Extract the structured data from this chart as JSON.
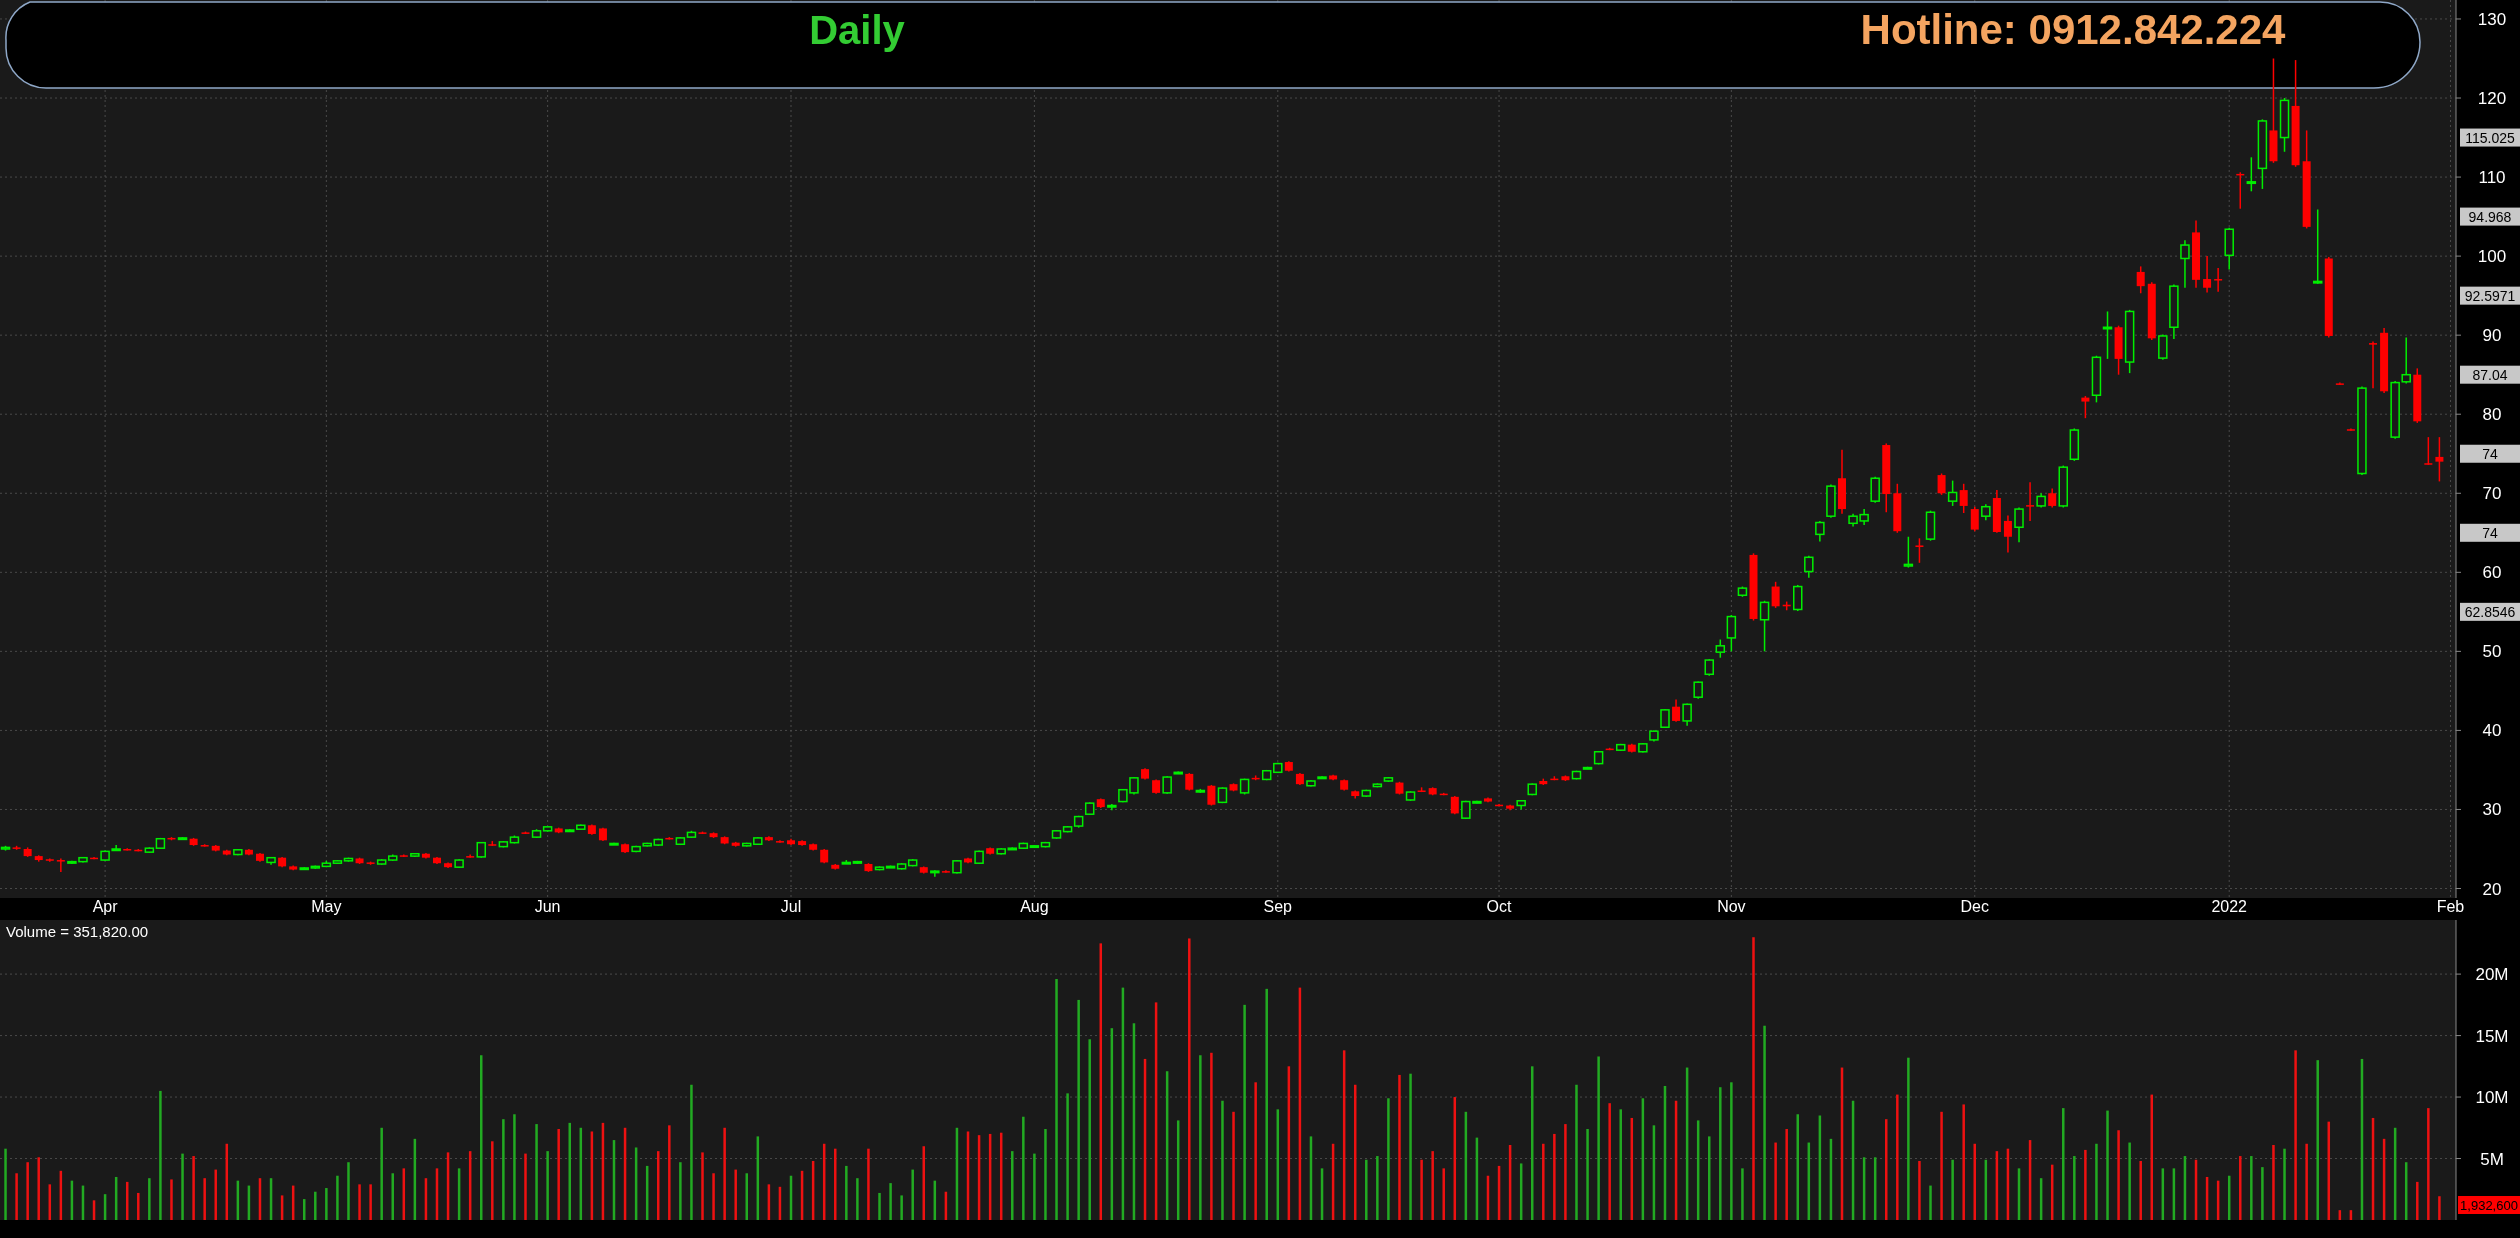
{
  "chart_data": [
    {
      "type": "candlestick",
      "title": "Daily",
      "ylim": [
        18.8,
        132.4
      ],
      "yticks": [
        20,
        30,
        40,
        50,
        60,
        70,
        80,
        90,
        100,
        110,
        120,
        130
      ],
      "grid": true,
      "annotations": [
        "Hotline: 0912.842.224",
        "115.025",
        "94.968",
        "92.5971",
        "87.04",
        "74",
        "74",
        "62.8546"
      ],
      "categories": [
        null,
        null,
        null,
        null,
        null,
        null,
        null,
        null,
        null,
        "Apr",
        null,
        null,
        null,
        null,
        null,
        null,
        null,
        null,
        null,
        null,
        null,
        null,
        null,
        null,
        null,
        null,
        null,
        null,
        null,
        "May",
        null,
        null,
        null,
        null,
        null,
        null,
        null,
        null,
        null,
        null,
        null,
        null,
        null,
        null,
        null,
        null,
        null,
        null,
        null,
        "Jun",
        null,
        null,
        null,
        null,
        null,
        null,
        null,
        null,
        null,
        null,
        null,
        null,
        null,
        null,
        null,
        null,
        null,
        null,
        null,
        null,
        null,
        "Jul",
        null,
        null,
        null,
        null,
        null,
        null,
        null,
        null,
        null,
        null,
        null,
        null,
        null,
        null,
        null,
        null,
        null,
        null,
        null,
        null,
        null,
        "Aug",
        null,
        null,
        null,
        null,
        null,
        null,
        null,
        null,
        null,
        null,
        null,
        null,
        null,
        null,
        null,
        null,
        null,
        null,
        null,
        null,
        null,
        "Sep",
        null,
        null,
        null,
        null,
        null,
        null,
        null,
        null,
        null,
        null,
        null,
        null,
        null,
        null,
        null,
        null,
        null,
        null,
        null,
        "Oct",
        null,
        null,
        null,
        null,
        null,
        null,
        null,
        null,
        null,
        null,
        null,
        null,
        null,
        null,
        null,
        null,
        null,
        null,
        null,
        null,
        "Nov",
        null,
        null,
        null,
        null,
        null,
        null,
        null,
        null,
        null,
        null,
        null,
        null,
        null,
        null,
        null,
        null,
        null,
        null,
        null,
        null,
        null,
        "Dec",
        null,
        null,
        null,
        null,
        null,
        null,
        null,
        null,
        null,
        null,
        null,
        null,
        null,
        null,
        null,
        null,
        null,
        null,
        null,
        null,
        null,
        null,
        "2022",
        null,
        null,
        null,
        null,
        null,
        null,
        null,
        null,
        null,
        null,
        null,
        null,
        null,
        null,
        null,
        null,
        null,
        null,
        null,
        "Feb"
      ],
      "ohlc": [
        [
          25.0,
          25.4,
          24.8,
          25.2
        ],
        [
          25.2,
          25.4,
          24.9,
          25.1
        ],
        [
          25.0,
          25.2,
          24.0,
          24.1
        ],
        [
          24.1,
          24.2,
          23.4,
          23.6
        ],
        [
          23.7,
          23.8,
          23.4,
          23.6
        ],
        [
          23.6,
          23.8,
          22.1,
          23.5
        ],
        [
          23.3,
          23.5,
          23.1,
          23.4
        ],
        [
          23.4,
          24.0,
          23.3,
          23.9
        ],
        [
          23.9,
          24.0,
          23.7,
          23.8
        ],
        [
          23.6,
          24.8,
          23.5,
          24.7
        ],
        [
          24.9,
          25.5,
          24.8,
          25.0
        ],
        [
          25.0,
          25.1,
          24.8,
          24.9
        ],
        [
          24.9,
          25.0,
          24.7,
          24.8
        ],
        [
          24.6,
          25.2,
          24.5,
          25.1
        ],
        [
          25.1,
          26.4,
          25.0,
          26.3
        ],
        [
          26.4,
          26.5,
          26.1,
          26.3
        ],
        [
          26.3,
          26.5,
          26.2,
          26.4
        ],
        [
          26.3,
          26.4,
          25.4,
          25.5
        ],
        [
          25.5,
          25.6,
          25.3,
          25.4
        ],
        [
          25.4,
          25.5,
          24.7,
          24.8
        ],
        [
          24.8,
          24.9,
          24.2,
          24.3
        ],
        [
          24.3,
          25.0,
          24.2,
          24.9
        ],
        [
          24.9,
          25.0,
          24.2,
          24.3
        ],
        [
          24.4,
          24.5,
          23.4,
          23.5
        ],
        [
          23.3,
          24.0,
          23.0,
          23.9
        ],
        [
          23.9,
          24.0,
          22.7,
          22.8
        ],
        [
          22.8,
          22.9,
          22.3,
          22.4
        ],
        [
          22.5,
          22.7,
          22.4,
          22.6
        ],
        [
          22.6,
          22.9,
          22.5,
          22.8
        ],
        [
          22.8,
          23.5,
          22.7,
          23.2
        ],
        [
          23.2,
          23.6,
          23.1,
          23.5
        ],
        [
          23.5,
          23.9,
          23.4,
          23.8
        ],
        [
          23.8,
          23.9,
          23.1,
          23.2
        ],
        [
          23.3,
          23.4,
          23.0,
          23.2
        ],
        [
          23.1,
          23.7,
          23.0,
          23.6
        ],
        [
          23.6,
          24.3,
          23.5,
          24.1
        ],
        [
          24.2,
          24.3,
          24.0,
          24.1
        ],
        [
          24.1,
          24.5,
          24.0,
          24.4
        ],
        [
          24.4,
          24.5,
          23.8,
          23.9
        ],
        [
          23.9,
          24.0,
          23.1,
          23.2
        ],
        [
          23.2,
          23.3,
          22.6,
          22.7
        ],
        [
          22.7,
          23.7,
          22.6,
          23.6
        ],
        [
          24.1,
          24.3,
          23.9,
          24.0
        ],
        [
          24.0,
          25.9,
          23.9,
          25.8
        ],
        [
          25.6,
          26.0,
          25.4,
          25.5
        ],
        [
          25.3,
          26.0,
          25.2,
          25.9
        ],
        [
          25.8,
          26.7,
          25.7,
          26.5
        ],
        [
          27.1,
          27.2,
          26.9,
          27.0
        ],
        [
          26.5,
          27.5,
          26.4,
          27.3
        ],
        [
          27.3,
          27.9,
          27.2,
          27.8
        ],
        [
          27.6,
          27.7,
          27.0,
          27.1
        ],
        [
          27.3,
          27.5,
          27.2,
          27.4
        ],
        [
          27.5,
          28.1,
          27.4,
          28.0
        ],
        [
          28.0,
          28.1,
          26.8,
          26.9
        ],
        [
          27.6,
          27.7,
          26.0,
          26.1
        ],
        [
          25.6,
          25.8,
          25.5,
          25.7
        ],
        [
          25.6,
          25.7,
          24.5,
          24.6
        ],
        [
          24.7,
          25.4,
          24.6,
          25.3
        ],
        [
          25.4,
          25.8,
          25.3,
          25.7
        ],
        [
          25.5,
          26.3,
          25.4,
          26.2
        ],
        [
          26.4,
          26.5,
          26.2,
          26.3
        ],
        [
          25.6,
          26.5,
          25.5,
          26.4
        ],
        [
          26.5,
          27.3,
          26.4,
          27.1
        ],
        [
          27.1,
          27.2,
          26.9,
          27.0
        ],
        [
          27.0,
          27.1,
          26.4,
          26.5
        ],
        [
          26.5,
          26.6,
          25.6,
          25.7
        ],
        [
          25.8,
          25.9,
          25.3,
          25.4
        ],
        [
          25.4,
          25.8,
          25.3,
          25.7
        ],
        [
          25.6,
          26.5,
          25.5,
          26.4
        ],
        [
          26.5,
          26.6,
          26.0,
          26.1
        ],
        [
          26.0,
          26.1,
          25.8,
          25.9
        ],
        [
          26.1,
          26.3,
          25.5,
          25.6
        ],
        [
          26.0,
          26.1,
          25.4,
          25.5
        ],
        [
          25.6,
          25.7,
          24.8,
          24.9
        ],
        [
          24.9,
          25.0,
          23.2,
          23.3
        ],
        [
          23.0,
          23.1,
          22.4,
          22.5
        ],
        [
          23.2,
          23.6,
          23.1,
          23.3
        ],
        [
          23.3,
          23.5,
          23.1,
          23.4
        ],
        [
          23.1,
          23.2,
          22.1,
          22.2
        ],
        [
          22.4,
          22.8,
          22.3,
          22.7
        ],
        [
          22.7,
          22.9,
          22.6,
          22.8
        ],
        [
          22.5,
          23.2,
          22.4,
          23.1
        ],
        [
          22.9,
          23.7,
          22.8,
          23.6
        ],
        [
          22.7,
          22.8,
          21.9,
          22.0
        ],
        [
          22.1,
          22.3,
          21.5,
          22.2
        ],
        [
          22.2,
          22.3,
          22.0,
          22.1
        ],
        [
          22.0,
          23.6,
          21.9,
          23.5
        ],
        [
          23.8,
          23.9,
          23.2,
          23.3
        ],
        [
          23.2,
          24.8,
          23.1,
          24.7
        ],
        [
          25.1,
          25.2,
          24.3,
          24.4
        ],
        [
          24.4,
          25.1,
          24.3,
          25.0
        ],
        [
          25.0,
          25.2,
          24.9,
          25.1
        ],
        [
          25.1,
          25.8,
          25.0,
          25.7
        ],
        [
          25.3,
          25.5,
          25.2,
          25.4
        ],
        [
          25.3,
          25.9,
          25.2,
          25.8
        ],
        [
          26.4,
          27.4,
          26.3,
          27.3
        ],
        [
          27.2,
          27.9,
          27.1,
          27.8
        ],
        [
          27.9,
          29.2,
          27.7,
          29.1
        ],
        [
          29.4,
          30.9,
          29.3,
          30.8
        ],
        [
          31.3,
          31.4,
          30.2,
          30.3
        ],
        [
          30.4,
          30.7,
          29.9,
          30.5
        ],
        [
          31.0,
          32.6,
          30.9,
          32.5
        ],
        [
          32.1,
          34.1,
          31.9,
          34.0
        ],
        [
          35.1,
          35.2,
          33.8,
          33.9
        ],
        [
          33.7,
          33.8,
          32.0,
          32.1
        ],
        [
          32.1,
          34.2,
          32.0,
          34.1
        ],
        [
          34.6,
          34.8,
          34.5,
          34.7
        ],
        [
          34.5,
          34.6,
          32.4,
          32.5
        ],
        [
          32.3,
          32.6,
          32.1,
          32.4
        ],
        [
          33.0,
          33.1,
          30.5,
          30.6
        ],
        [
          30.9,
          32.8,
          30.8,
          32.7
        ],
        [
          33.2,
          33.3,
          32.3,
          32.4
        ],
        [
          32.1,
          33.9,
          31.9,
          33.8
        ],
        [
          34.0,
          34.3,
          33.7,
          33.9
        ],
        [
          33.8,
          35.0,
          33.7,
          34.9
        ],
        [
          34.7,
          35.9,
          34.6,
          35.8
        ],
        [
          36.0,
          36.1,
          34.8,
          34.9
        ],
        [
          34.5,
          34.6,
          33.1,
          33.2
        ],
        [
          33.0,
          33.7,
          32.9,
          33.6
        ],
        [
          34.0,
          34.2,
          33.9,
          34.1
        ],
        [
          34.3,
          34.4,
          33.7,
          33.8
        ],
        [
          33.7,
          33.8,
          32.4,
          32.5
        ],
        [
          32.3,
          32.4,
          31.4,
          31.7
        ],
        [
          31.7,
          32.5,
          31.6,
          32.4
        ],
        [
          32.9,
          33.3,
          32.8,
          33.2
        ],
        [
          33.6,
          34.1,
          33.5,
          34.0
        ],
        [
          33.4,
          33.5,
          31.9,
          32.0
        ],
        [
          31.2,
          32.3,
          31.1,
          32.2
        ],
        [
          32.4,
          32.8,
          32.2,
          32.3
        ],
        [
          32.7,
          32.8,
          31.8,
          31.9
        ],
        [
          32.0,
          32.1,
          31.8,
          31.9
        ],
        [
          31.6,
          31.7,
          29.4,
          29.5
        ],
        [
          28.9,
          31.1,
          28.8,
          31.0
        ],
        [
          30.9,
          31.1,
          30.8,
          31.0
        ],
        [
          31.4,
          31.5,
          30.9,
          31.0
        ],
        [
          30.6,
          30.7,
          30.4,
          30.5
        ],
        [
          30.5,
          30.6,
          29.9,
          30.1
        ],
        [
          30.5,
          31.2,
          30.0,
          31.1
        ],
        [
          31.9,
          33.3,
          31.8,
          33.2
        ],
        [
          33.6,
          33.9,
          33.1,
          33.2
        ],
        [
          33.9,
          34.2,
          33.7,
          33.8
        ],
        [
          34.2,
          34.3,
          33.6,
          33.7
        ],
        [
          33.9,
          34.9,
          33.8,
          34.8
        ],
        [
          35.2,
          35.4,
          35.1,
          35.3
        ],
        [
          35.8,
          37.4,
          35.7,
          37.3
        ],
        [
          37.7,
          37.8,
          37.5,
          37.6
        ],
        [
          37.5,
          38.3,
          37.4,
          38.2
        ],
        [
          38.2,
          38.3,
          37.2,
          37.3
        ],
        [
          37.3,
          38.4,
          37.2,
          38.3
        ],
        [
          38.8,
          40.0,
          38.6,
          39.9
        ],
        [
          40.4,
          42.7,
          40.3,
          42.6
        ],
        [
          43.0,
          43.9,
          41.1,
          41.2
        ],
        [
          41.2,
          43.4,
          40.6,
          43.3
        ],
        [
          44.2,
          46.2,
          44.0,
          46.1
        ],
        [
          47.1,
          49.0,
          46.9,
          48.9
        ],
        [
          49.9,
          51.5,
          49.2,
          50.7
        ],
        [
          51.7,
          54.6,
          50.0,
          54.4
        ],
        [
          57.1,
          58.2,
          56.9,
          58.0
        ],
        [
          62.2,
          62.4,
          53.9,
          54.1
        ],
        [
          54.0,
          56.4,
          50.0,
          56.2
        ],
        [
          58.2,
          58.8,
          55.5,
          55.7
        ],
        [
          55.9,
          56.3,
          55.2,
          55.7
        ],
        [
          55.3,
          58.4,
          55.1,
          58.2
        ],
        [
          60.1,
          62.1,
          59.3,
          61.9
        ],
        [
          64.8,
          66.5,
          63.9,
          66.3
        ],
        [
          67.1,
          71.1,
          66.9,
          70.9
        ],
        [
          71.9,
          75.5,
          67.4,
          68.0
        ],
        [
          66.2,
          67.4,
          65.8,
          67.1
        ],
        [
          66.5,
          68.0,
          66.0,
          67.3
        ],
        [
          69.0,
          72.1,
          68.8,
          71.9
        ],
        [
          76.1,
          76.3,
          67.6,
          69.9
        ],
        [
          70.0,
          71.2,
          65.0,
          65.2
        ],
        [
          60.8,
          64.5,
          60.6,
          61.0
        ],
        [
          63.4,
          64.3,
          61.2,
          63.2
        ],
        [
          64.2,
          67.8,
          64.0,
          67.6
        ],
        [
          72.3,
          72.5,
          69.8,
          70.0
        ],
        [
          69.0,
          71.6,
          68.4,
          70.1
        ],
        [
          70.4,
          71.2,
          67.5,
          68.4
        ],
        [
          68.0,
          68.3,
          65.2,
          65.4
        ],
        [
          67.1,
          68.6,
          66.6,
          68.3
        ],
        [
          69.4,
          70.4,
          65.0,
          65.1
        ],
        [
          66.5,
          67.2,
          62.5,
          64.5
        ],
        [
          65.7,
          68.2,
          63.8,
          68.0
        ],
        [
          68.5,
          71.4,
          66.5,
          68.4
        ],
        [
          68.4,
          70.0,
          68.2,
          69.6
        ],
        [
          70.0,
          70.6,
          68.2,
          68.4
        ],
        [
          68.4,
          73.5,
          68.2,
          73.3
        ],
        [
          74.3,
          78.2,
          74.1,
          78.0
        ],
        [
          82.1,
          82.3,
          79.5,
          81.6
        ],
        [
          82.4,
          87.4,
          81.5,
          87.2
        ],
        [
          90.9,
          93.0,
          87.0,
          91.0
        ],
        [
          91.0,
          91.2,
          85.0,
          87.0
        ],
        [
          86.6,
          93.2,
          85.2,
          93.0
        ],
        [
          98.0,
          98.7,
          95.3,
          96.2
        ],
        [
          96.5,
          96.7,
          89.4,
          89.6
        ],
        [
          87.1,
          90.1,
          86.9,
          89.9
        ],
        [
          91.0,
          96.4,
          89.5,
          96.2
        ],
        [
          99.7,
          102.0,
          96.0,
          101.4
        ],
        [
          103.0,
          104.5,
          96.0,
          97.0
        ],
        [
          97.1,
          100.0,
          95.4,
          96.0
        ],
        [
          97.1,
          98.5,
          95.5,
          97.0
        ],
        [
          100.1,
          103.6,
          98.3,
          103.4
        ],
        [
          110.4,
          110.6,
          106.0,
          110.3
        ],
        [
          109.3,
          112.5,
          108.2,
          109.4
        ],
        [
          111.1,
          117.3,
          108.5,
          117.1
        ],
        [
          115.9,
          125.0,
          111.8,
          112.0
        ],
        [
          115.0,
          120.0,
          113.2,
          119.7
        ],
        [
          119.0,
          124.8,
          111.3,
          111.5
        ],
        [
          112.0,
          115.9,
          103.5,
          103.7
        ],
        [
          96.7,
          105.9,
          96.5,
          96.8
        ],
        [
          99.7,
          99.9,
          89.7,
          89.9
        ],
        [
          83.9,
          84.0,
          83.7,
          83.8
        ],
        [
          78.1,
          78.2,
          77.9,
          78.0
        ],
        [
          72.5,
          83.5,
          72.3,
          83.3
        ],
        [
          89.0,
          89.2,
          83.3,
          88.8
        ],
        [
          90.3,
          90.9,
          82.7,
          82.9
        ],
        [
          77.1,
          84.2,
          76.9,
          84.0
        ],
        [
          84.1,
          89.7,
          83.9,
          85.0
        ],
        [
          85.0,
          85.8,
          78.9,
          79.1
        ],
        [
          73.8,
          77.1,
          73.6,
          73.7
        ],
        [
          74.6,
          77.1,
          71.5,
          74
        ],
        null
      ]
    },
    {
      "type": "bar",
      "title": "Volume = 351,820.00",
      "tick_labels": "y",
      "grid": "y",
      "ylim": [
        0,
        24.4
      ],
      "yticks": [
        {
          "value": 5,
          "label": "5M"
        },
        {
          "value": 10,
          "label": "10M"
        },
        {
          "value": 15,
          "label": "15M"
        },
        {
          "value": 20,
          "label": "20M"
        }
      ],
      "annotations": [
        "1,932,600"
      ],
      "categories": [
        null,
        null,
        null,
        null,
        null,
        null,
        null,
        null,
        null,
        null,
        null,
        null,
        null,
        null,
        null,
        null,
        null,
        null,
        null,
        null,
        null,
        null,
        null,
        null,
        null,
        null,
        null,
        null,
        null,
        null,
        null,
        null,
        null,
        null,
        null,
        null,
        null,
        null,
        null,
        null,
        null,
        null,
        null,
        null,
        null,
        null,
        null,
        null,
        null,
        null,
        null,
        null,
        null,
        null,
        null,
        null,
        null,
        null,
        null,
        null,
        null,
        null,
        null,
        null,
        null,
        null,
        null,
        null,
        null,
        null,
        null,
        null,
        null,
        null,
        null,
        null,
        null,
        null,
        null,
        null,
        null,
        null,
        null,
        null,
        null,
        null,
        null,
        null,
        null,
        null,
        null,
        null,
        null,
        null,
        null,
        null,
        null,
        null,
        null,
        null,
        null,
        null,
        null,
        null,
        null,
        null,
        null,
        null,
        null,
        null,
        null,
        null,
        null,
        null,
        null,
        null,
        null,
        null,
        null,
        null,
        null,
        null,
        null,
        null,
        null,
        null,
        null,
        null,
        null,
        null,
        null,
        null,
        null,
        null,
        null,
        null,
        null,
        null,
        null,
        null,
        null,
        null,
        null,
        null,
        null,
        null,
        null,
        null,
        null,
        null,
        null,
        null,
        null,
        null,
        null,
        null,
        null,
        null,
        null,
        null,
        null,
        null,
        null,
        null,
        null,
        null,
        null,
        null,
        null,
        null,
        null,
        null,
        null,
        null,
        null,
        null,
        null,
        null,
        null,
        null,
        null,
        null,
        null,
        null,
        null,
        null,
        null,
        null,
        null,
        null,
        null,
        null,
        null,
        null,
        null,
        null,
        null,
        null,
        null,
        null,
        null,
        null,
        null,
        null,
        null,
        null,
        null,
        null,
        null,
        null,
        null,
        null,
        null,
        null,
        null,
        null,
        null,
        null,
        null,
        null,
        null,
        null
      ],
      "values": [
        5.8,
        3.8,
        4.7,
        5.1,
        2.9,
        4.0,
        3.2,
        2.8,
        1.6,
        2.1,
        3.5,
        3.1,
        2.2,
        3.4,
        10.5,
        3.3,
        5.4,
        5.2,
        3.4,
        4.1,
        6.2,
        3.2,
        2.8,
        3.4,
        3.4,
        2.0,
        2.8,
        1.7,
        2.3,
        2.6,
        3.6,
        4.7,
        2.9,
        2.9,
        7.5,
        3.8,
        4.2,
        6.6,
        3.4,
        4.2,
        5.5,
        4.2,
        5.6,
        13.4,
        6.4,
        8.2,
        8.6,
        5.4,
        7.8,
        5.6,
        7.4,
        7.9,
        7.5,
        7.2,
        7.9,
        6.5,
        7.5,
        5.9,
        4.4,
        5.6,
        7.7,
        4.7,
        11.0,
        5.5,
        3.8,
        7.5,
        4.1,
        3.8,
        6.8,
        2.9,
        2.7,
        3.6,
        4.0,
        4.8,
        6.2,
        5.8,
        4.4,
        3.4,
        5.8,
        2.2,
        3.0,
        2.0,
        4.1,
        6.0,
        3.2,
        2.3,
        7.5,
        7.2,
        6.9,
        7.0,
        7.1,
        5.6,
        8.4,
        5.4,
        7.4,
        19.6,
        10.3,
        17.9,
        14.7,
        22.5,
        15.6,
        18.9,
        16.0,
        13.1,
        17.7,
        12.1,
        8.1,
        22.9,
        13.4,
        13.6,
        9.7,
        8.8,
        17.5,
        11.2,
        18.8,
        9.0,
        12.5,
        18.9,
        6.8,
        4.2,
        6.2,
        13.8,
        11.0,
        4.9,
        5.2,
        9.9,
        11.8,
        11.9,
        4.9,
        5.6,
        4.2,
        10.0,
        8.8,
        6.7,
        3.6,
        4.4,
        6.1,
        4.6,
        12.5,
        6.2,
        7.0,
        7.8,
        11.0,
        7.4,
        13.3,
        9.5,
        9.0,
        8.3,
        9.9,
        7.7,
        10.9,
        9.7,
        12.4,
        8.1,
        6.8,
        10.8,
        11.2,
        4.2,
        23.0,
        15.8,
        6.3,
        7.4,
        8.6,
        6.3,
        8.5,
        6.6,
        12.4,
        9.7,
        5.1,
        5.1,
        8.2,
        10.2,
        13.2,
        4.8,
        2.8,
        8.8,
        4.9,
        9.4,
        6.2,
        4.9,
        5.6,
        5.8,
        4.2,
        6.5,
        3.4,
        4.5,
        9.1,
        5.2,
        5.7,
        6.2,
        8.9,
        7.3,
        6.3,
        4.8,
        10.2,
        4.2,
        4.2,
        5.2,
        4.9,
        3.5,
        3.2,
        3.6,
        5.2,
        5.2,
        4.3,
        6.1,
        5.8,
        13.8,
        6.2,
        13.0,
        8.0,
        0.8,
        0.8,
        13.1,
        8.3,
        6.6,
        7.5,
        4.7,
        3.1,
        9.1,
        1.9326,
        null
      ],
      "colors": [
        "#22aa22",
        "#ee1111",
        "#ee1111",
        "#ee1111",
        "#ee1111",
        "#ee1111",
        "#22aa22",
        "#22aa22",
        "#ee1111",
        "#22aa22",
        "#22aa22",
        "#ee1111",
        "#ee1111",
        "#22aa22",
        "#22aa22",
        "#ee1111",
        "#22aa22",
        "#ee1111",
        "#ee1111",
        "#ee1111",
        "#ee1111",
        "#22aa22",
        "#22aa22",
        "#ee1111",
        "#22aa22",
        "#ee1111",
        "#ee1111",
        "#22aa22",
        "#22aa22",
        "#22aa22",
        "#22aa22",
        "#22aa22",
        "#ee1111",
        "#ee1111",
        "#22aa22",
        "#22aa22",
        "#ee1111",
        "#22aa22",
        "#ee1111",
        "#ee1111",
        "#ee1111",
        "#22aa22",
        "#ee1111",
        "#22aa22",
        "#ee1111",
        "#22aa22",
        "#22aa22",
        "#ee1111",
        "#22aa22",
        "#22aa22",
        "#ee1111",
        "#22aa22",
        "#22aa22",
        "#ee1111",
        "#ee1111",
        "#22aa22",
        "#ee1111",
        "#22aa22",
        "#22aa22",
        "#ee1111",
        "#ee1111",
        "#22aa22",
        "#22aa22",
        "#ee1111",
        "#ee1111",
        "#ee1111",
        "#ee1111",
        "#22aa22",
        "#22aa22",
        "#ee1111",
        "#ee1111",
        "#22aa22",
        "#ee1111",
        "#ee1111",
        "#ee1111",
        "#ee1111",
        "#22aa22",
        "#22aa22",
        "#ee1111",
        "#22aa22",
        "#22aa22",
        "#22aa22",
        "#22aa22",
        "#ee1111",
        "#22aa22",
        "#ee1111",
        "#22aa22",
        "#ee1111",
        "#ee1111",
        "#ee1111",
        "#ee1111",
        "#22aa22",
        "#22aa22",
        "#22aa22",
        "#22aa22",
        "#22aa22",
        "#22aa22",
        "#22aa22",
        "#22aa22",
        "#ee1111",
        "#22aa22",
        "#22aa22",
        "#22aa22",
        "#ee1111",
        "#ee1111",
        "#22aa22",
        "#22aa22",
        "#ee1111",
        "#22aa22",
        "#ee1111",
        "#22aa22",
        "#ee1111",
        "#22aa22",
        "#ee1111",
        "#22aa22",
        "#22aa22",
        "#ee1111",
        "#ee1111",
        "#22aa22",
        "#22aa22",
        "#ee1111",
        "#ee1111",
        "#ee1111",
        "#22aa22",
        "#22aa22",
        "#22aa22",
        "#ee1111",
        "#22aa22",
        "#ee1111",
        "#ee1111",
        "#ee1111",
        "#ee1111",
        "#22aa22",
        "#22aa22",
        "#ee1111",
        "#ee1111",
        "#ee1111",
        "#22aa22",
        "#22aa22",
        "#ee1111",
        "#ee1111",
        "#ee1111",
        "#22aa22",
        "#22aa22",
        "#22aa22",
        "#ee1111",
        "#22aa22",
        "#ee1111",
        "#22aa22",
        "#22aa22",
        "#22aa22",
        "#ee1111",
        "#22aa22",
        "#22aa22",
        "#22aa22",
        "#22aa22",
        "#22aa22",
        "#22aa22",
        "#ee1111",
        "#22aa22",
        "#ee1111",
        "#ee1111",
        "#22aa22",
        "#22aa22",
        "#22aa22",
        "#22aa22",
        "#ee1111",
        "#22aa22",
        "#22aa22",
        "#22aa22",
        "#ee1111",
        "#ee1111",
        "#22aa22",
        "#ee1111",
        "#22aa22",
        "#ee1111",
        "#22aa22",
        "#ee1111",
        "#ee1111",
        "#22aa22",
        "#ee1111",
        "#ee1111",
        "#22aa22",
        "#ee1111",
        "#22aa22",
        "#ee1111",
        "#22aa22",
        "#22aa22",
        "#ee1111",
        "#22aa22",
        "#22aa22",
        "#ee1111",
        "#22aa22",
        "#ee1111",
        "#ee1111",
        "#22aa22",
        "#22aa22",
        "#22aa22",
        "#ee1111",
        "#ee1111",
        "#ee1111",
        "#22aa22",
        "#ee1111",
        "#22aa22",
        "#22aa22",
        "#ee1111",
        "#22aa22",
        "#ee1111",
        "#ee1111",
        "#22aa22",
        "#ee1111",
        "#ee1111",
        "#ee1111",
        "#22aa22",
        "#ee1111",
        "#ee1111",
        "#22aa22",
        "#22aa22",
        "#ee1111",
        "#ee1111",
        "#ee1111",
        null
      ]
    }
  ]
}
